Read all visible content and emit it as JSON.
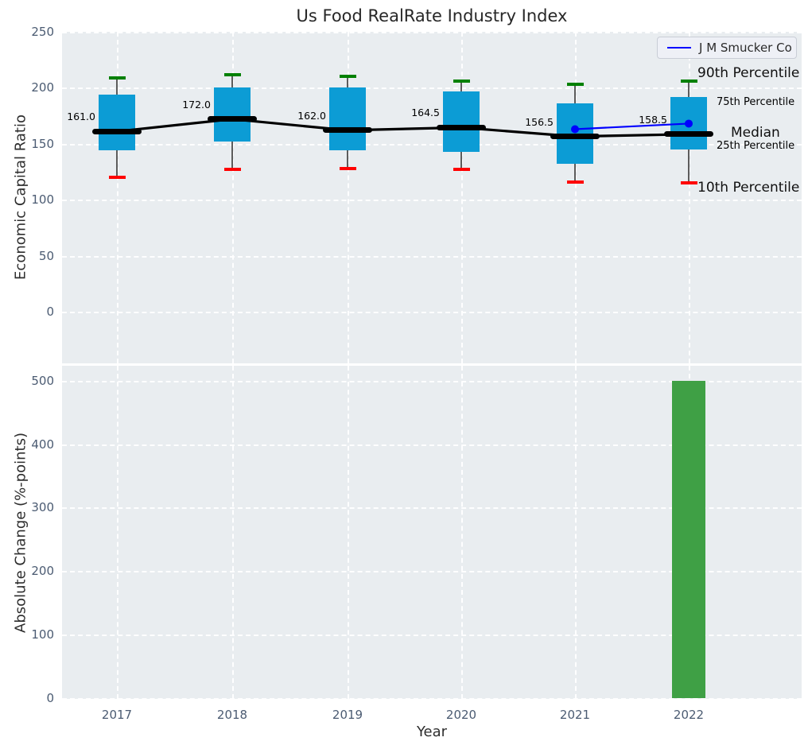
{
  "figure": {
    "background": "#ffffff",
    "plot_background": "#e9edf0"
  },
  "title": "Us Food RealRate Industry Index",
  "chart_data": [
    {
      "type": "box",
      "title": "Us Food RealRate Industry Index",
      "ylabel": "Economic Capital Ratio",
      "yticks": [
        250,
        200,
        150,
        100,
        50,
        0
      ],
      "ylim": [
        -48,
        250
      ],
      "grid": true,
      "legend_position": "upper right",
      "categories": [
        "2017",
        "2018",
        "2019",
        "2020",
        "2021",
        "2022"
      ],
      "boxes": [
        {
          "year": "2017",
          "p10": 120,
          "p25": 144,
          "median": 161.0,
          "p75": 194,
          "p90": 209,
          "median_label": "161.0"
        },
        {
          "year": "2018",
          "p10": 127,
          "p25": 152,
          "median": 172.0,
          "p75": 200,
          "p90": 212,
          "median_label": "172.0"
        },
        {
          "year": "2019",
          "p10": 128,
          "p25": 144,
          "median": 162.0,
          "p75": 200,
          "p90": 210,
          "median_label": "162.0"
        },
        {
          "year": "2020",
          "p10": 127,
          "p25": 143,
          "median": 164.5,
          "p75": 197,
          "p90": 206,
          "median_label": "164.5"
        },
        {
          "year": "2021",
          "p10": 116,
          "p25": 132,
          "median": 156.5,
          "p75": 186,
          "p90": 203,
          "median_label": "156.5"
        },
        {
          "year": "2022",
          "p10": 115,
          "p25": 145,
          "median": 158.5,
          "p75": 192,
          "p90": 206,
          "median_label": "158.5"
        }
      ],
      "series": [
        {
          "name": "J M Smucker Co",
          "x": [
            "2021",
            "2022"
          ],
          "values": [
            163,
            168
          ],
          "color": "#0000ff"
        }
      ],
      "box_color": "#0c9cd5",
      "median_line_color": "#000000",
      "whisker_cap_colors": {
        "p90": "#008000",
        "p10": "#ff0000"
      },
      "annotations": [
        {
          "text": "90th Percentile",
          "color": "#101010"
        },
        {
          "text": "75th Percentile",
          "color": "#1ba3d1"
        },
        {
          "text": "Median",
          "color": "#101010"
        },
        {
          "text": "25th Percentile",
          "color": "#1ba3d1"
        },
        {
          "text": "10th Percentile",
          "color": "#101010"
        }
      ]
    },
    {
      "type": "bar",
      "ylabel": "Absolute Change (%-points)",
      "xlabel": "Year",
      "yticks": [
        500,
        400,
        300,
        200,
        100,
        0
      ],
      "ylim": [
        0,
        523
      ],
      "grid": true,
      "categories": [
        "2017",
        "2018",
        "2019",
        "2020",
        "2021",
        "2022"
      ],
      "values": [
        null,
        null,
        null,
        null,
        null,
        499
      ],
      "bar_color": "#3fa045"
    }
  ]
}
